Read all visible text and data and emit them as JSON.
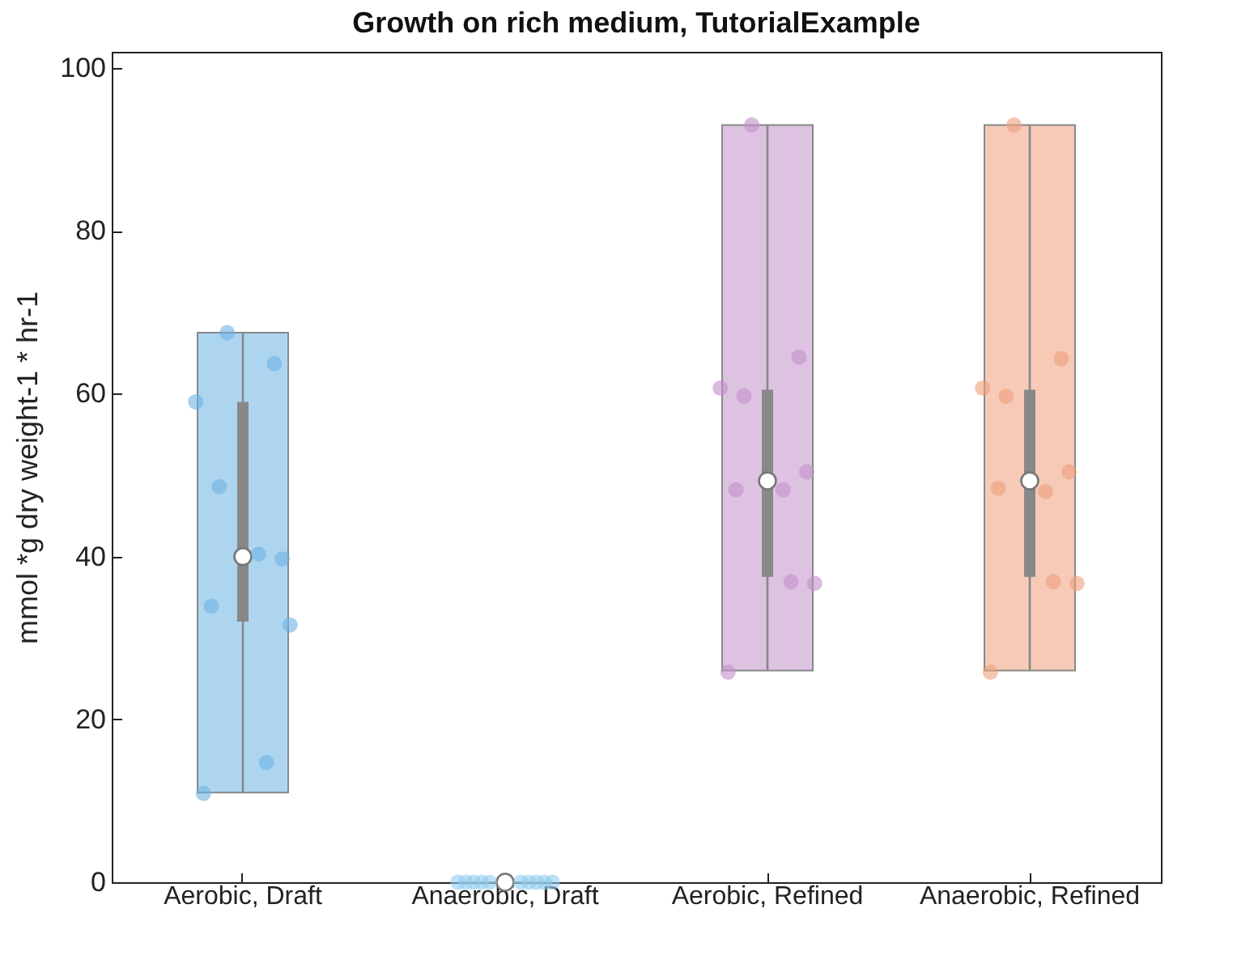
{
  "chart_data": {
    "type": "box",
    "title": "Growth on rich medium, TutorialExample",
    "ylabel": "mmol *g dry weight-1 * hr-1",
    "categories": [
      "Aerobic, Draft",
      "Anaerobic, Draft",
      "Aerobic, Refined",
      "Anaerobic, Refined"
    ],
    "ylim": [
      0,
      102
    ],
    "yticks": [
      0,
      20,
      40,
      60,
      80,
      100
    ],
    "grid": false,
    "series": [
      {
        "type": "box",
        "colors": [
          "#888888",
          "#888888",
          "#888888",
          "#888888"
        ],
        "boxes": [
          {
            "low": 11,
            "q1": 32,
            "median": 40,
            "q3": 59,
            "high": 67.5
          },
          {
            "low": 0,
            "q1": 0,
            "median": 0,
            "q3": 0,
            "high": 0
          },
          {
            "low": 26,
            "q1": 37.5,
            "median": 49.3,
            "q3": 60.5,
            "high": 93
          },
          {
            "low": 26,
            "q1": 37.5,
            "median": 49.3,
            "q3": 60.5,
            "high": 93
          }
        ]
      },
      {
        "type": "scatter",
        "x": [
          "Aerobic, Draft",
          "Aerobic, Draft",
          "Aerobic, Draft",
          "Aerobic, Draft",
          "Aerobic, Draft",
          "Aerobic, Draft",
          "Aerobic, Draft",
          "Aerobic, Draft",
          "Aerobic, Draft",
          "Aerobic, Draft",
          "Anaerobic, Draft",
          "Anaerobic, Draft",
          "Anaerobic, Draft",
          "Anaerobic, Draft",
          "Anaerobic, Draft",
          "Anaerobic, Draft",
          "Anaerobic, Draft",
          "Anaerobic, Draft",
          "Anaerobic, Draft",
          "Anaerobic, Draft",
          "Aerobic, Refined",
          "Aerobic, Refined",
          "Aerobic, Refined",
          "Aerobic, Refined",
          "Aerobic, Refined",
          "Aerobic, Refined",
          "Aerobic, Refined",
          "Aerobic, Refined",
          "Aerobic, Refined",
          "Aerobic, Refined",
          "Anaerobic, Refined",
          "Anaerobic, Refined",
          "Anaerobic, Refined",
          "Anaerobic, Refined",
          "Anaerobic, Refined",
          "Anaerobic, Refined",
          "Anaerobic, Refined",
          "Anaerobic, Refined",
          "Anaerobic, Refined",
          "Anaerobic, Refined"
        ],
        "values": [
          67.5,
          63.7,
          59,
          48.6,
          39.7,
          40.3,
          33.9,
          31.6,
          14.7,
          10.9,
          0,
          0,
          0,
          0,
          0,
          0,
          0,
          0,
          0,
          0,
          93,
          64.5,
          60.7,
          59.7,
          50.4,
          48.2,
          48.2,
          36.7,
          36.9,
          25.8,
          93,
          64.3,
          60.7,
          59.7,
          50.4,
          48,
          48.4,
          36.7,
          36.9,
          25.8
        ],
        "colors": [
          "#6cb3e3",
          "#6cb3e3",
          "#6cb3e3",
          "#6cb3e3",
          "#6cb3e3",
          "#6cb3e3",
          "#6cb3e3",
          "#6cb3e3",
          "#6cb3e3",
          "#6cb3e3",
          "#8fcbef",
          "#8fcbef",
          "#8fcbef",
          "#8fcbef",
          "#8fcbef",
          "#8fcbef",
          "#8fcbef",
          "#8fcbef",
          "#8fcbef",
          "#8fcbef",
          "#c28fca",
          "#c28fca",
          "#c28fca",
          "#c28fca",
          "#c28fca",
          "#c28fca",
          "#c28fca",
          "#c28fca",
          "#c28fca",
          "#c28fca",
          "#ee9f7c",
          "#ee9f7c",
          "#ee9f7c",
          "#ee9f7c",
          "#ee9f7c",
          "#ee9f7c",
          "#ee9f7c",
          "#ee9f7c",
          "#ee9f7c",
          "#ee9f7c"
        ]
      }
    ]
  }
}
